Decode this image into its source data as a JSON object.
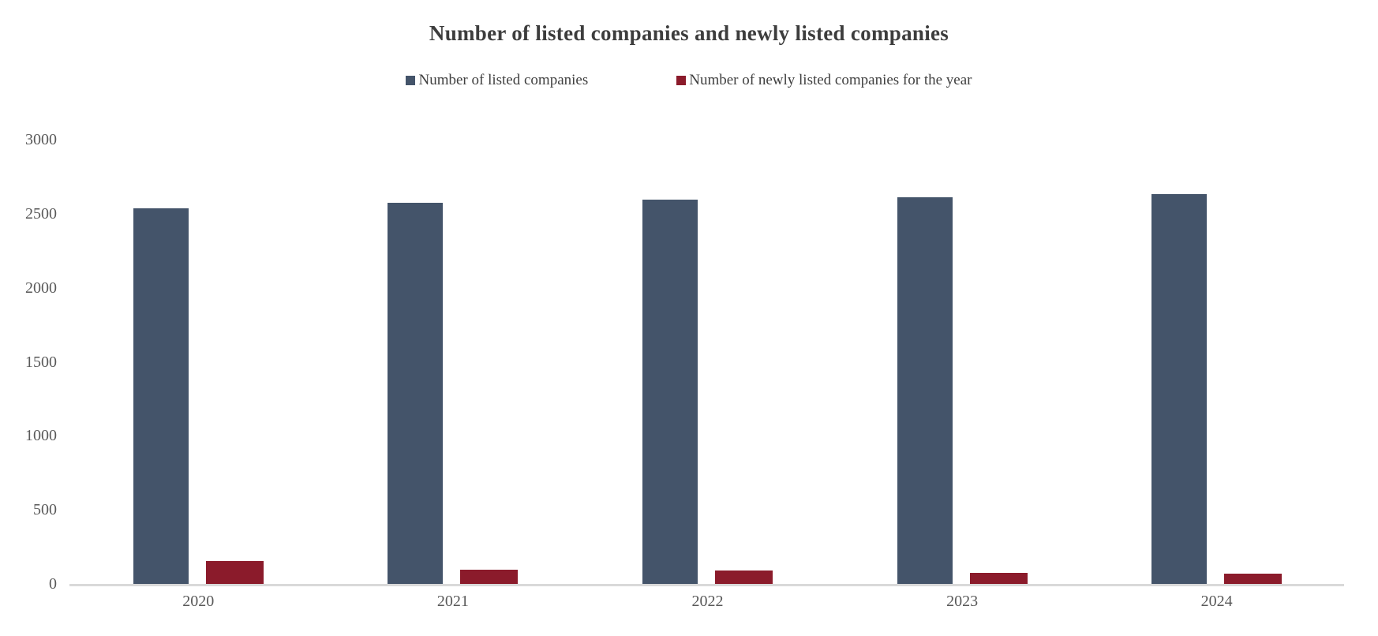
{
  "title": "Number of listed companies and newly listed companies",
  "colors": {
    "listed_series": "#44546A",
    "newly_listed_series": "#8B1B2B",
    "axis_line": "#D9D9D9",
    "tick_label": "#595959",
    "title_text": "#3D3D3D"
  },
  "legend": [
    {
      "label": "Number of listed companies",
      "color": "#44546A"
    },
    {
      "label": "Number of newly listed companies for the year",
      "color": "#8B1B2B"
    }
  ],
  "chart_data": {
    "type": "bar",
    "title": "Number of listed companies and newly listed companies",
    "categories": [
      "2020",
      "2021",
      "2022",
      "2023",
      "2024"
    ],
    "series": [
      {
        "name": "Number of listed companies",
        "color": "#44546A",
        "values": [
          2538,
          2572,
          2597,
          2609,
          2631
        ]
      },
      {
        "name": "Number of newly listed companies for the year",
        "color": "#8B1B2B",
        "values": [
          154,
          98,
          90,
          73,
          71
        ]
      }
    ],
    "xlabel": "",
    "ylabel": "",
    "ylim": [
      0,
      3000
    ],
    "yticks": [
      0,
      500,
      1000,
      1500,
      2000,
      2500,
      3000
    ],
    "grid": false,
    "legend_position": "top"
  }
}
